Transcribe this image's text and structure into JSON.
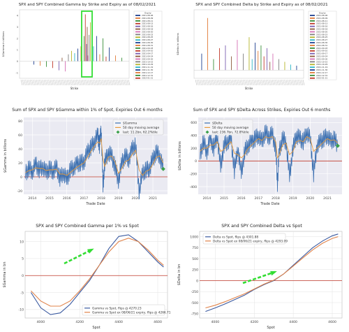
{
  "chart_data": [
    {
      "type": "bar",
      "title": "SPX and SPY Combined Gamma by Strike and Expiry as of 08/02/2021",
      "xlabel": "Strike",
      "ylabel": "$Gamma in billions",
      "ylim": [
        -1.5,
        4.5
      ],
      "yticks": [
        "-1",
        "0",
        "1",
        "2",
        "3",
        "4"
      ],
      "legend_title": "Expiry",
      "legend_position": "right",
      "legend_entries": [
        "2021-08-06",
        "2021-08-09",
        "2021-08-11",
        "2021-08-13",
        "2021-08-16",
        "2021-08-18",
        "2021-08-20",
        "2021-08-23",
        "2021-08-25",
        "2021-08-27",
        "2021-08-30",
        "2021-08-31",
        "2021-09-03",
        "2021-09-10",
        "2021-09-17",
        "2021-09-24",
        "2021-09-30",
        "2021-10-15",
        "2021-10-29",
        "2021-11-19",
        "2021-11-30",
        "2021-12-17",
        "2021-12-31",
        "2022-01-21"
      ],
      "series_colors": [
        "#1f3f8f",
        "#e07b39",
        "#3a8f3a",
        "#c03a2b",
        "#7b5fb0",
        "#8c5a3c",
        "#d46fb4",
        "#7f7f7f",
        "#b5b52a",
        "#2ab5c7",
        "#1f3f8f",
        "#e07b39",
        "#3a8f3a",
        "#c03a2b",
        "#7b5fb0",
        "#8c5a3c",
        "#d46fb4",
        "#7f7f7f",
        "#b5b52a",
        "#2ab5c7",
        "#1f3f8f",
        "#e07b39",
        "#3a8f3a",
        "#c03a2b"
      ],
      "highlight_box_color": "#33dd33",
      "highlight_x_range": [
        4400,
        4450
      ],
      "bars": [
        {
          "x": 4000,
          "y": -0.3
        },
        {
          "x": 4050,
          "y": -0.4
        },
        {
          "x": 4100,
          "y": -0.5
        },
        {
          "x": 4150,
          "y": -0.6
        },
        {
          "x": 4200,
          "y": -0.8
        },
        {
          "x": 4225,
          "y": 0.3
        },
        {
          "x": 4250,
          "y": -0.9
        },
        {
          "x": 4275,
          "y": 0.6
        },
        {
          "x": 4300,
          "y": 0.9
        },
        {
          "x": 4325,
          "y": 0.7
        },
        {
          "x": 4350,
          "y": 1.1
        },
        {
          "x": 4375,
          "y": 1.3
        },
        {
          "x": 4400,
          "y": 2.2
        },
        {
          "x": 4410,
          "y": 4.1
        },
        {
          "x": 4420,
          "y": 1.5
        },
        {
          "x": 4425,
          "y": 3.0
        },
        {
          "x": 4430,
          "y": 0.5
        },
        {
          "x": 4440,
          "y": 2.3
        },
        {
          "x": 4450,
          "y": 3.4
        },
        {
          "x": 4475,
          "y": 1.3
        },
        {
          "x": 4500,
          "y": 2.2
        },
        {
          "x": 4525,
          "y": 0.6
        },
        {
          "x": 4550,
          "y": 2.0
        },
        {
          "x": 4575,
          "y": 0.4
        },
        {
          "x": 4600,
          "y": 1.2
        },
        {
          "x": 4650,
          "y": 0.5
        },
        {
          "x": 4700,
          "y": 0.3
        }
      ],
      "xlim": [
        3900,
        4750
      ]
    },
    {
      "type": "bar",
      "title": "SPX and SPY Combined Delta by Strike and Expiry as of 08/02/2021",
      "xlabel": "Strike",
      "ylabel": "$Delta in billions",
      "legend_title": "Expiry",
      "legend_position": "right",
      "legend_entries": [
        "2021-08-06",
        "2021-08-09",
        "2021-08-11",
        "2021-08-13",
        "2021-08-16",
        "2021-08-18",
        "2021-08-20",
        "2021-08-23",
        "2021-08-25",
        "2021-08-27",
        "2021-08-30",
        "2021-08-31",
        "2021-09-03",
        "2021-09-10",
        "2021-09-17",
        "2021-09-24",
        "2021-09-30",
        "2021-10-15",
        "2021-10-29",
        "2021-11-19",
        "2021-11-30",
        "2021-12-17",
        "2021-12-31",
        "2022-01-21"
      ],
      "series_colors": [
        "#1f3f8f",
        "#e07b39",
        "#3a8f3a",
        "#c03a2b",
        "#7b5fb0",
        "#8c5a3c",
        "#d46fb4",
        "#7f7f7f",
        "#b5b52a",
        "#2ab5c7",
        "#1f3f8f",
        "#e07b39",
        "#3a8f3a",
        "#c03a2b",
        "#7b5fb0",
        "#8c5a3c",
        "#d46fb4",
        "#7f7f7f",
        "#b5b52a",
        "#2ab5c7",
        "#1f3f8f",
        "#e07b39",
        "#3a8f3a",
        "#c03a2b"
      ],
      "ylim": [
        -15,
        110
      ],
      "bars": [
        {
          "x": 3900,
          "y": 30
        },
        {
          "x": 3950,
          "y": 95
        },
        {
          "x": 4000,
          "y": 20
        },
        {
          "x": 4050,
          "y": 40
        },
        {
          "x": 4100,
          "y": 45
        },
        {
          "x": 4150,
          "y": 25
        },
        {
          "x": 4200,
          "y": 55
        },
        {
          "x": 4250,
          "y": 30
        },
        {
          "x": 4300,
          "y": 60
        },
        {
          "x": 4325,
          "y": 20
        },
        {
          "x": 4350,
          "y": 50
        },
        {
          "x": 4375,
          "y": 35
        },
        {
          "x": 4400,
          "y": 45
        },
        {
          "x": 4425,
          "y": 25
        },
        {
          "x": 4450,
          "y": 40
        },
        {
          "x": 4475,
          "y": 15
        },
        {
          "x": 4500,
          "y": 30
        },
        {
          "x": 4550,
          "y": 20
        },
        {
          "x": 4600,
          "y": 15
        },
        {
          "x": 4650,
          "y": 10
        },
        {
          "x": 4700,
          "y": 8
        }
      ],
      "xlim": [
        3850,
        4750
      ]
    },
    {
      "type": "line",
      "title": "Sum of SPX and SPY $Gamma within 1% of Spot, Expiries Out 6 months",
      "xlabel": "Trade Date",
      "ylabel": "$Gamma in billions",
      "xticks": [
        "2014",
        "2015",
        "2016",
        "2017",
        "2018",
        "2019",
        "2020",
        "2021"
      ],
      "yticks": [
        "-20",
        "0",
        "20",
        "40",
        "60",
        "80"
      ],
      "ylim": [
        -25,
        85
      ],
      "xlim": [
        2013.5,
        2021.85
      ],
      "legend_position": "top-right",
      "reference_line": 0,
      "series": [
        {
          "name": "$Gamma",
          "color": "#3b6fb0"
        },
        {
          "name": "50 day moving average",
          "color": "#e79b3c"
        },
        {
          "name": "last: 11.2bn, 62.2%tile",
          "color": "#3aa04a",
          "marker": "diamond"
        }
      ],
      "x": [
        2013.6,
        2013.8,
        2014.0,
        2014.2,
        2014.4,
        2014.6,
        2014.8,
        2015.0,
        2015.2,
        2015.4,
        2015.6,
        2015.8,
        2016.0,
        2016.2,
        2016.4,
        2016.6,
        2016.8,
        2017.0,
        2017.2,
        2017.4,
        2017.6,
        2017.8,
        2017.9,
        2018.0,
        2018.1,
        2018.2,
        2018.4,
        2018.6,
        2018.8,
        2019.0,
        2019.2,
        2019.4,
        2019.6,
        2019.8,
        2020.0,
        2020.2,
        2020.4,
        2020.6,
        2020.8,
        2021.0,
        2021.2,
        2021.4,
        2021.6
      ],
      "gamma": [
        5,
        12,
        8,
        18,
        10,
        15,
        6,
        12,
        8,
        14,
        -2,
        6,
        -4,
        10,
        14,
        18,
        20,
        22,
        35,
        42,
        50,
        60,
        45,
        70,
        -15,
        20,
        35,
        30,
        15,
        -5,
        20,
        30,
        25,
        40,
        45,
        -20,
        5,
        10,
        12,
        25,
        35,
        30,
        11
      ],
      "ma50": [
        6,
        9,
        10,
        13,
        12,
        12,
        9,
        10,
        10,
        11,
        4,
        4,
        2,
        6,
        10,
        14,
        17,
        20,
        28,
        36,
        44,
        50,
        48,
        55,
        25,
        15,
        28,
        30,
        22,
        5,
        12,
        22,
        24,
        32,
        38,
        10,
        2,
        8,
        10,
        18,
        28,
        30,
        20
      ],
      "last_point": {
        "x": 2021.6,
        "y": 11.2
      }
    },
    {
      "type": "line",
      "title": "Sum of SPX and SPY $Delta Across Strikes, Expiries Out 6 months",
      "xlabel": "Trade Date",
      "ylabel": "$Delta in billions",
      "xticks": [
        "2014",
        "2015",
        "2016",
        "2017",
        "2018",
        "2019",
        "2020",
        "2021"
      ],
      "yticks": [
        "-400",
        "-200",
        "0",
        "200",
        "400",
        "600"
      ],
      "ylim": [
        -520,
        680
      ],
      "xlim": [
        2013.5,
        2021.85
      ],
      "legend_position": "top-left",
      "reference_line": 0,
      "series": [
        {
          "name": "$Delta",
          "color": "#3b6fb0"
        },
        {
          "name": "50 day moving average",
          "color": "#e79b3c"
        },
        {
          "name": "last: 236.7bn, 72.8%tile",
          "color": "#3aa04a",
          "marker": "diamond"
        }
      ],
      "x": [
        2013.6,
        2013.8,
        2014.0,
        2014.2,
        2014.4,
        2014.6,
        2014.8,
        2015.0,
        2015.2,
        2015.4,
        2015.6,
        2015.8,
        2016.0,
        2016.2,
        2016.4,
        2016.6,
        2016.8,
        2017.0,
        2017.2,
        2017.4,
        2017.6,
        2017.8,
        2018.0,
        2018.1,
        2018.2,
        2018.4,
        2018.6,
        2018.8,
        2019.0,
        2019.2,
        2019.4,
        2019.6,
        2019.8,
        2020.0,
        2020.2,
        2020.4,
        2020.6,
        2020.8,
        2021.0,
        2021.2,
        2021.4,
        2021.6
      ],
      "delta": [
        100,
        300,
        150,
        350,
        200,
        400,
        -100,
        250,
        300,
        350,
        -150,
        200,
        -200,
        150,
        250,
        300,
        350,
        400,
        300,
        450,
        380,
        420,
        200,
        -350,
        150,
        350,
        300,
        -250,
        200,
        400,
        350,
        300,
        450,
        350,
        -200,
        250,
        300,
        350,
        400,
        300,
        350,
        237
      ],
      "ma50": [
        150,
        200,
        200,
        250,
        250,
        300,
        150,
        180,
        250,
        300,
        120,
        100,
        50,
        100,
        200,
        250,
        300,
        350,
        320,
        380,
        360,
        380,
        300,
        50,
        100,
        250,
        280,
        100,
        150,
        300,
        320,
        300,
        380,
        350,
        150,
        200,
        250,
        300,
        350,
        320,
        330,
        280
      ],
      "last_point": {
        "x": 2021.6,
        "y": 236.7
      }
    },
    {
      "type": "line",
      "title": "SPX and SPY Combined Gamma per 1% vs Spot",
      "xlabel": "Spot",
      "ylabel": "$Gamma in bn",
      "xticks": [
        "4000",
        "4200",
        "4400",
        "4600"
      ],
      "yticks": [
        "-10",
        "-5",
        "0",
        "5",
        "10"
      ],
      "ylim": [
        -12.5,
        13
      ],
      "xlim": [
        3920,
        4650
      ],
      "legend_position": "bottom-right",
      "reference_line": 0,
      "arrow_color": "#33dd33",
      "series": [
        {
          "name": "Gamma vs Spot, flips @ 4270.23",
          "color": "#3b5aa0"
        },
        {
          "name": "Gamma vs Spot ex 08/06/21 expiry, flips @ 4266.71",
          "color": "#e0834a"
        }
      ],
      "x": [
        3950,
        4000,
        4050,
        4100,
        4150,
        4200,
        4250,
        4300,
        4350,
        4400,
        4450,
        4500,
        4550,
        4600,
        4630
      ],
      "gamma": [
        -5,
        -9.5,
        -11.5,
        -11,
        -8.5,
        -5,
        -1.5,
        3,
        8,
        11.5,
        12,
        10,
        7,
        4,
        2.5
      ],
      "gamma_ex": [
        -4.5,
        -7.5,
        -9,
        -9,
        -7.5,
        -4.5,
        -1,
        3,
        7,
        10,
        11,
        10,
        7.5,
        4.5,
        3
      ]
    },
    {
      "type": "line",
      "title": "SPX and SPY Combined Delta vs Spot",
      "xlabel": "Spot",
      "ylabel": "$Delta in bn",
      "xticks": [
        "4000",
        "4200",
        "4400",
        "4600"
      ],
      "yticks": [
        "-750",
        "-500",
        "-250",
        "0",
        "250",
        "500",
        "750",
        "1000"
      ],
      "ylim": [
        -850,
        1120
      ],
      "xlim": [
        3920,
        4650
      ],
      "legend_position": "top-left",
      "reference_line": 0,
      "arrow_color": "#33dd33",
      "series": [
        {
          "name": "Delta vs Spot, flips @ 4301.88",
          "color": "#3b5aa0"
        },
        {
          "name": "Delta vs Spot ex 08/06/21 expiry, flips @ 4293.09",
          "color": "#e0834a"
        }
      ],
      "x": [
        3950,
        4000,
        4050,
        4100,
        4150,
        4200,
        4250,
        4300,
        4350,
        4400,
        4450,
        4500,
        4550,
        4600,
        4630
      ],
      "delta": [
        -700,
        -620,
        -530,
        -430,
        -330,
        -200,
        -90,
        0,
        150,
        350,
        550,
        750,
        900,
        1020,
        1060
      ],
      "delta_ex": [
        -620,
        -560,
        -480,
        -390,
        -300,
        -190,
        -80,
        10,
        150,
        330,
        520,
        700,
        850,
        960,
        1000
      ]
    }
  ]
}
